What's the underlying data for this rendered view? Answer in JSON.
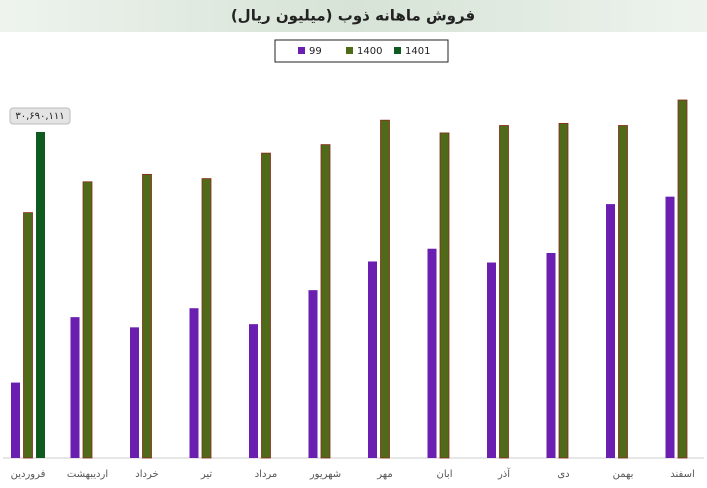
{
  "chart_data": {
    "type": "bar",
    "title": "فروش ماهانه ذوب (میلیون ریال)",
    "categories": [
      "فروردین",
      "اردیبهشت",
      "خرداد",
      "تیر",
      "مرداد",
      "شهریور",
      "مهر",
      "ابان",
      "آذر",
      "دی",
      "بهمن",
      "اسفند"
    ],
    "series": [
      {
        "name": "99",
        "color": "#6a1fb0",
        "values": [
          7100000,
          13260000,
          12300000,
          14100000,
          12600000,
          15800000,
          18500000,
          19700000,
          18400000,
          19300000,
          23900000,
          24600000
        ]
      },
      {
        "name": "1400",
        "color": "#4f6b1a",
        "values": [
          23100000,
          26000000,
          26700000,
          26300000,
          28700000,
          29500000,
          31800000,
          30600000,
          31300000,
          31500000,
          31300000,
          33700000
        ]
      },
      {
        "name": "1401",
        "color": "#0f5a1f",
        "values": [
          30690111,
          null,
          null,
          null,
          null,
          null,
          null,
          null,
          null,
          null,
          null,
          null
        ],
        "value_labels": [
          "۳۰,۶۹۰,۱۱۱",
          null,
          null,
          null,
          null,
          null,
          null,
          null,
          null,
          null,
          null,
          null
        ]
      }
    ],
    "legend": "top"
  }
}
